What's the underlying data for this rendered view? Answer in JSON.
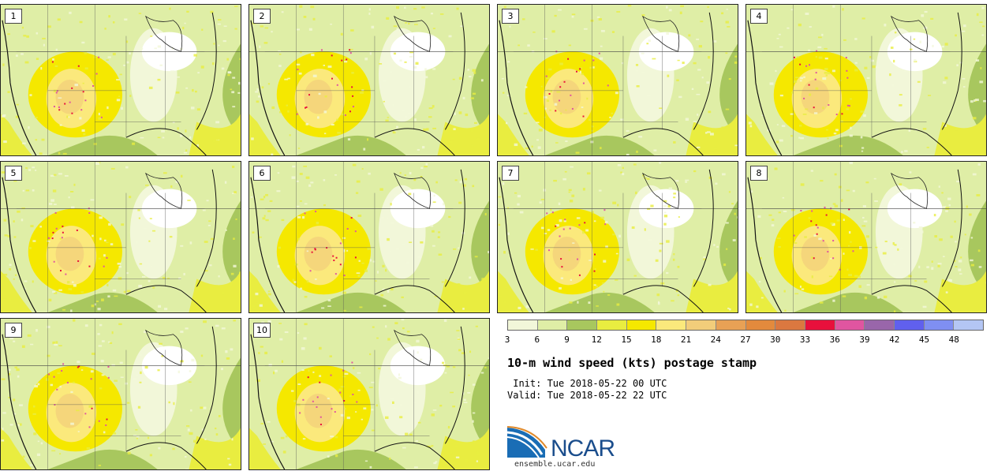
{
  "panels": [
    {
      "label": "1"
    },
    {
      "label": "2"
    },
    {
      "label": "3"
    },
    {
      "label": "4"
    },
    {
      "label": "5"
    },
    {
      "label": "6"
    },
    {
      "label": "7"
    },
    {
      "label": "8"
    },
    {
      "label": "9"
    },
    {
      "label": "10"
    }
  ],
  "colorbar": {
    "ticks": [
      "3",
      "6",
      "9",
      "12",
      "15",
      "18",
      "21",
      "24",
      "27",
      "30",
      "33",
      "36",
      "39",
      "42",
      "45",
      "48"
    ],
    "colors": [
      "#f2f7d9",
      "#dfeea6",
      "#a8c75e",
      "#e9ed40",
      "#f5e800",
      "#fbe97c",
      "#f2cd7a",
      "#e8a155",
      "#e38a3d",
      "#db7840",
      "#e8103c",
      "#e055a0",
      "#9966aa",
      "#6060ee",
      "#7f8ff2",
      "#b4c6f4"
    ]
  },
  "title": "10-m wind speed (kts) postage stamp",
  "init": " Init: Tue 2018-05-22 00 UTC",
  "valid": "Valid: Tue 2018-05-22 22 UTC",
  "logo": {
    "text": "NCAR",
    "url": "ensemble.ucar.edu"
  }
}
